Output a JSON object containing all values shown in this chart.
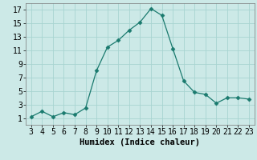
{
  "x": [
    3,
    4,
    5,
    6,
    7,
    8,
    9,
    10,
    11,
    12,
    13,
    14,
    15,
    16,
    17,
    18,
    19,
    20,
    21,
    22,
    23
  ],
  "y": [
    1.2,
    2.0,
    1.2,
    1.8,
    1.5,
    2.5,
    8.0,
    11.5,
    12.5,
    14.0,
    15.2,
    17.2,
    16.2,
    11.3,
    6.5,
    4.8,
    4.5,
    3.2,
    4.0,
    4.0,
    3.8
  ],
  "line_color": "#1a7a6e",
  "marker": "D",
  "marker_size": 2.5,
  "background_color": "#cce9e7",
  "grid_color": "#a8d4d1",
  "xlabel": "Humidex (Indice chaleur)",
  "xlabel_fontsize": 7.5,
  "xlim": [
    2.5,
    23.5
  ],
  "ylim": [
    0,
    18
  ],
  "xticks": [
    3,
    4,
    5,
    6,
    7,
    8,
    9,
    10,
    11,
    12,
    13,
    14,
    15,
    16,
    17,
    18,
    19,
    20,
    21,
    22,
    23
  ],
  "yticks": [
    1,
    3,
    5,
    7,
    9,
    11,
    13,
    15,
    17
  ],
  "tick_fontsize": 7.0
}
